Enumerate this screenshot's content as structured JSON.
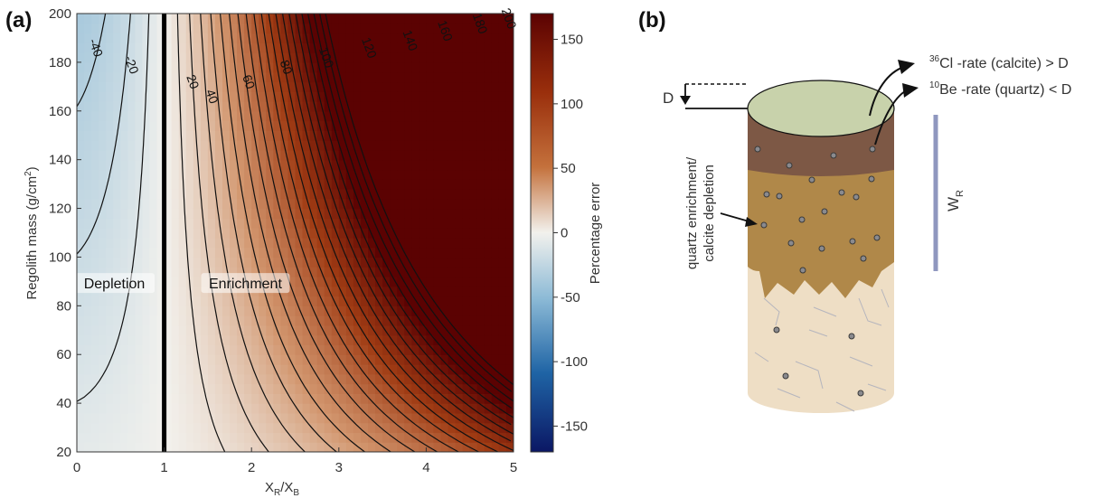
{
  "panels": {
    "a": "(a)",
    "b": "(b)"
  },
  "chart_data": {
    "type": "heatmap",
    "xlabel_main": "X",
    "xlabel_sub1": "R",
    "xlabel_slash": "/X",
    "xlabel_sub2": "B",
    "ylabel_main": "Regolith mass (g/cm",
    "ylabel_sup": "2",
    "ylabel_end": ")",
    "xlim": [
      0,
      5
    ],
    "ylim": [
      20,
      200
    ],
    "x_ticks": [
      {
        "value": 0,
        "label": "0"
      },
      {
        "value": 1,
        "label": "1"
      },
      {
        "value": 2,
        "label": "2"
      },
      {
        "value": 3,
        "label": "3"
      },
      {
        "value": 4,
        "label": "4"
      },
      {
        "value": 5,
        "label": "5"
      }
    ],
    "y_ticks": [
      {
        "value": 20,
        "label": "20"
      },
      {
        "value": 40,
        "label": "40"
      },
      {
        "value": 60,
        "label": "60"
      },
      {
        "value": 80,
        "label": "80"
      },
      {
        "value": 100,
        "label": "100"
      },
      {
        "value": 120,
        "label": "120"
      },
      {
        "value": 140,
        "label": "140"
      },
      {
        "value": 160,
        "label": "160"
      },
      {
        "value": 180,
        "label": "180"
      },
      {
        "value": 200,
        "label": "200"
      }
    ],
    "colorbar": {
      "label": "Percentage error",
      "range": [
        -170,
        170
      ],
      "ticks": [
        {
          "value": 150,
          "label": "150"
        },
        {
          "value": 100,
          "label": "100"
        },
        {
          "value": 50,
          "label": "50"
        },
        {
          "value": 0,
          "label": "0"
        },
        {
          "value": -50,
          "label": "-50"
        },
        {
          "value": -100,
          "label": "-100"
        },
        {
          "value": -150,
          "label": "-150"
        }
      ]
    },
    "contour_levels": [
      -40,
      -30,
      -20,
      -10,
      10,
      20,
      30,
      40,
      50,
      60,
      70,
      80,
      90,
      100,
      110,
      120,
      130,
      140,
      150,
      160,
      170,
      180,
      190,
      200
    ],
    "contour_labels": [
      {
        "level": -40,
        "text": "-40",
        "x": 0.22,
        "y": 186
      },
      {
        "level": -20,
        "text": "-20",
        "x": 0.63,
        "y": 179
      },
      {
        "level": 20,
        "text": "20",
        "x": 1.33,
        "y": 172
      },
      {
        "level": 40,
        "text": "40",
        "x": 1.55,
        "y": 166
      },
      {
        "level": 60,
        "text": "60",
        "x": 1.97,
        "y": 172
      },
      {
        "level": 80,
        "text": "80",
        "x": 2.4,
        "y": 178
      },
      {
        "level": 100,
        "text": "100",
        "x": 2.86,
        "y": 182
      },
      {
        "level": 120,
        "text": "120",
        "x": 3.35,
        "y": 186
      },
      {
        "level": 140,
        "text": "140",
        "x": 3.82,
        "y": 189
      },
      {
        "level": 160,
        "text": "160",
        "x": 4.22,
        "y": 193
      },
      {
        "level": 180,
        "text": "180",
        "x": 4.62,
        "y": 196
      },
      {
        "level": 200,
        "text": "200",
        "x": 4.95,
        "y": 198
      }
    ],
    "divider_x": 1,
    "regions": [
      {
        "text": "Depletion",
        "x": 0.43,
        "y": 89
      },
      {
        "text": "Enrichment",
        "x": 1.93,
        "y": 89
      }
    ]
  },
  "diagram": {
    "depth_label": "D",
    "cl_sup": "36",
    "cl_text": "Cl -rate (calcite)  > D",
    "be_sup": "10",
    "be_text": "Be -rate (quartz) < D",
    "annotation_line1": "quartz enrichment/",
    "annotation_line2": "calcite depletion",
    "wr_main": "W",
    "wr_sub": "R",
    "colors": {
      "top": "#c8d2ab",
      "soil": "#7d5845",
      "weathered": "#b08849",
      "bedrock": "#eedec5",
      "scale_bar": "#8f97bf"
    }
  }
}
